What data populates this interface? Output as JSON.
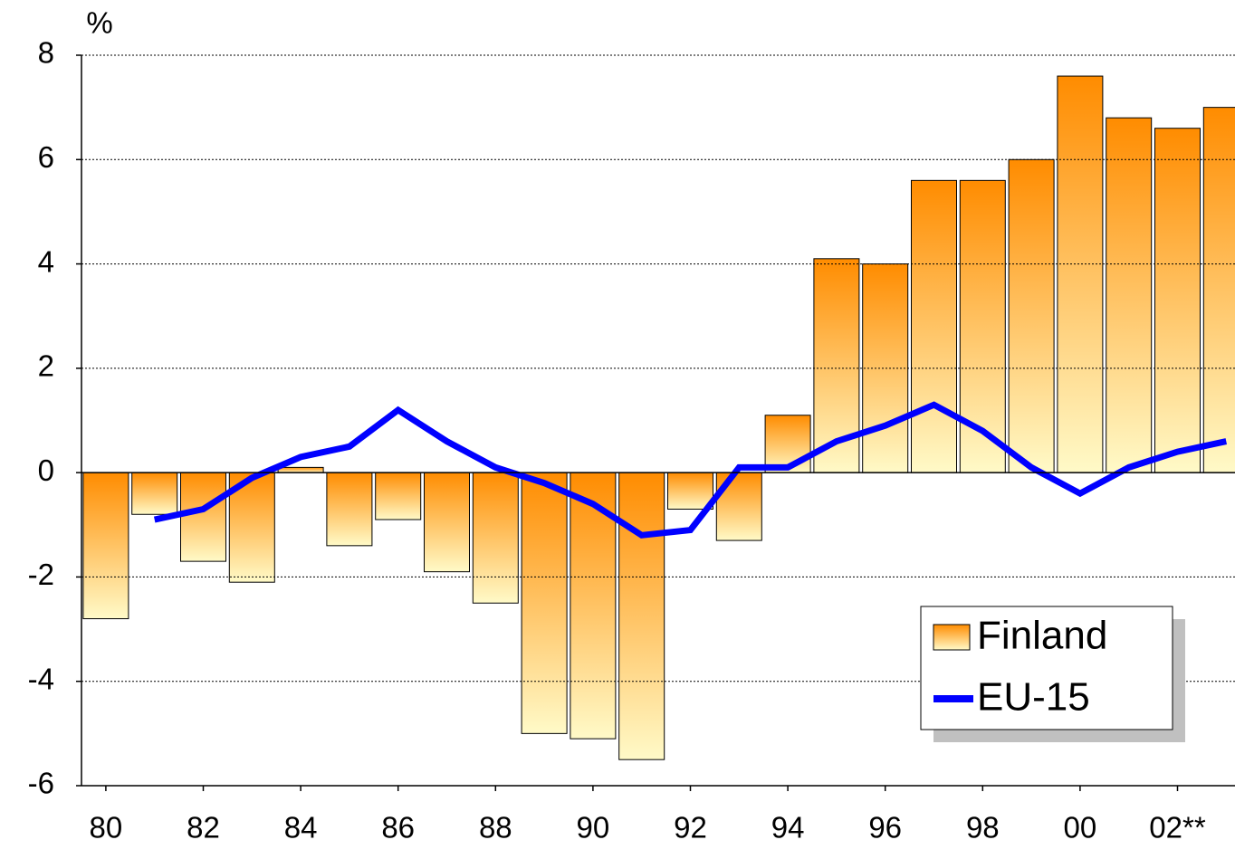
{
  "chart_data": {
    "type": "bar_line",
    "y_unit": "%",
    "categories": [
      "80",
      null,
      "82",
      null,
      "84",
      null,
      "86",
      null,
      "88",
      null,
      "90",
      null,
      "92",
      null,
      "94",
      null,
      "96",
      null,
      "98",
      null,
      "00",
      null,
      "02**",
      null
    ],
    "series": [
      {
        "name": "Finland",
        "type": "bar",
        "color": "#ff8c00",
        "values": [
          -2.8,
          -0.8,
          -1.7,
          -2.1,
          0.1,
          -1.4,
          -0.9,
          -1.9,
          -2.5,
          -5.0,
          -5.1,
          -5.5,
          -0.7,
          -1.3,
          1.1,
          4.1,
          4.0,
          5.6,
          5.6,
          6.0,
          7.6,
          6.8,
          6.6,
          7.0
        ]
      },
      {
        "name": "EU-15",
        "type": "line",
        "color": "#0000ff",
        "values": [
          null,
          -0.9,
          -0.7,
          -0.1,
          0.3,
          0.5,
          1.2,
          0.6,
          0.1,
          -0.2,
          -0.6,
          -1.2,
          -1.1,
          0.1,
          0.1,
          0.6,
          0.9,
          1.3,
          0.8,
          0.1,
          -0.4,
          0.1,
          0.4,
          0.6
        ]
      }
    ],
    "ylim": [
      -6,
      8
    ],
    "yticks": [
      -6,
      -4,
      -2,
      0,
      2,
      4,
      6,
      8
    ],
    "grid": true,
    "legend": "lower right"
  }
}
